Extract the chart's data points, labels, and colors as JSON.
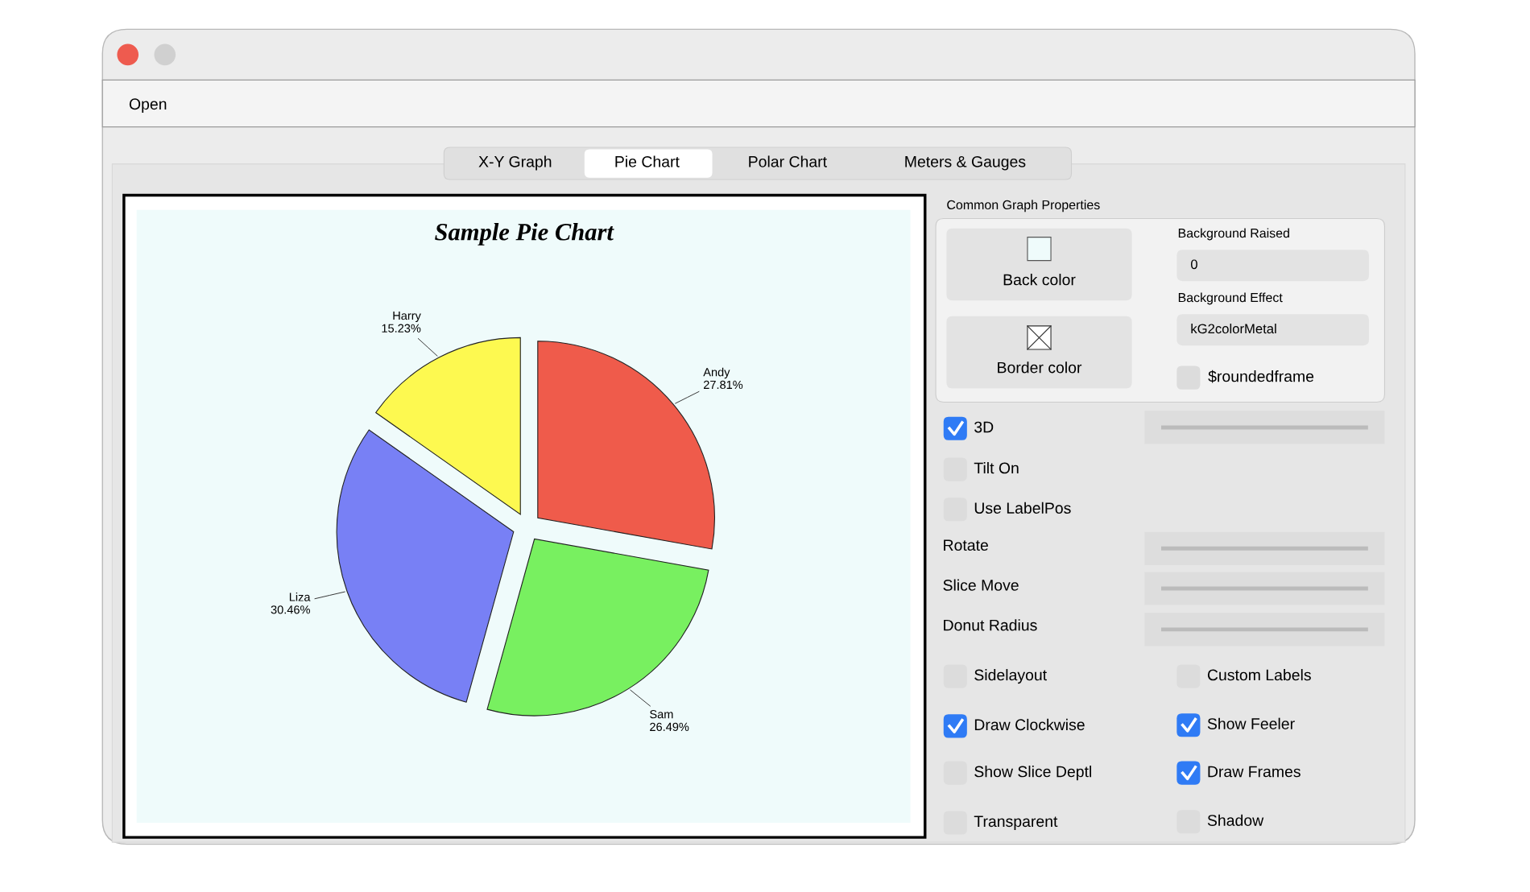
{
  "chart_data": [
    {
      "type": "pie",
      "title": "Sample Pie Chart",
      "categories": [
        "Andy",
        "Sam",
        "Liza",
        "Harry"
      ],
      "values": [
        27.81,
        26.49,
        30.46,
        15.23
      ],
      "value_labels": [
        "27.81%",
        "26.49%",
        "30.46%",
        "15.23%"
      ],
      "colors": [
        "#ef5b4b",
        "#78f060",
        "#7880f5",
        "#fdf950"
      ],
      "legend": false
    },
    {
      "type": "other",
      "annotations": [
        "Open",
        "X-Y Graph",
        "Pie Chart",
        "Polar Chart",
        "Meters & Gauges",
        "Common Graph Properties",
        "Back color",
        "Border color",
        "Background Raised",
        "0",
        "Background Effect",
        "kG2colorMetal",
        "$roundedframe",
        "3D",
        "Tilt On",
        "Use LabelPos",
        "Rotate",
        "Slice Move",
        "Donut Radius",
        "Sidelayout",
        "Custom Labels",
        "Draw Clockwise",
        "Show Feeler",
        "Show Slice Deptl",
        "Draw Frames",
        "Transparent",
        "Shadow"
      ]
    }
  ]
}
